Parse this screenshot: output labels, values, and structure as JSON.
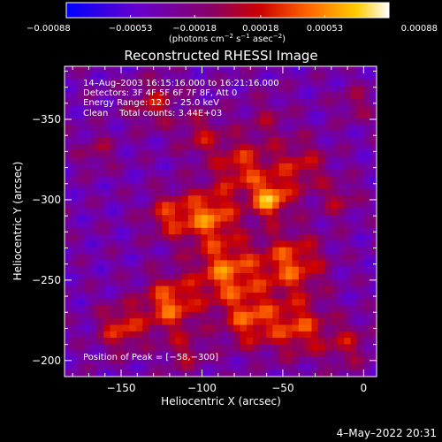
{
  "chart_data": {
    "type": "heatmap",
    "title": "Reconstructed RHESSI Image",
    "xlabel": "Heliocentric X (arcsec)",
    "ylabel": "Heliocentric Y (arcsec)",
    "xlim": [
      -185,
      8
    ],
    "ylim": [
      -383,
      -190
    ],
    "xticks": [
      -150,
      -100,
      -50,
      0
    ],
    "yticks": [
      -200,
      -250,
      -300,
      -350
    ],
    "xtick_labels": [
      "−150",
      "−100",
      "−50",
      "0"
    ],
    "ytick_labels": [
      "−200",
      "−250",
      "−300",
      "−350"
    ],
    "colorbar": {
      "range": [
        -0.00088,
        0.00088
      ],
      "ticks": [
        -0.00088,
        -0.00053,
        -0.00018,
        0.00018,
        0.00053,
        0.00088
      ],
      "tick_labels": [
        "−0.00088",
        "−0.00053",
        "−0.00018",
        "0.00018",
        "0.00053",
        "0.00088"
      ],
      "unit_parts": [
        "(photons cm",
        "−2",
        " s",
        "−1",
        " asec",
        "−2",
        ")"
      ]
    },
    "annotations": [
      "14–Aug–2003 16:15:16.000 to 16:21:16.000",
      "Detectors: 3F 4F 5F 6F 7F 8F, Att 0",
      "Energy Range: 12.0 – 25.0 keV",
      "Clean    Total counts: 3.44E+03"
    ],
    "peak_label": "Position of Peak = [−58,−300]",
    "sources": [
      {
        "x": -58,
        "y": -300,
        "amp": 0.00088,
        "sigma": 8
      },
      {
        "x": -95,
        "y": -290,
        "amp": 0.00075,
        "sigma": 12
      },
      {
        "x": -85,
        "y": -255,
        "amp": 0.00075,
        "sigma": 14
      },
      {
        "x": -45,
        "y": -260,
        "amp": 0.0007,
        "sigma": 14
      },
      {
        "x": -120,
        "y": -235,
        "amp": 0.00075,
        "sigma": 12
      },
      {
        "x": -150,
        "y": -220,
        "amp": 0.0006,
        "sigma": 10
      },
      {
        "x": -70,
        "y": -225,
        "amp": 0.00065,
        "sigma": 12
      },
      {
        "x": -40,
        "y": -220,
        "amp": 0.00062,
        "sigma": 12
      },
      {
        "x": -10,
        "y": -210,
        "amp": 0.0004,
        "sigma": 10
      },
      {
        "x": -120,
        "y": -290,
        "amp": 0.00055,
        "sigma": 10
      },
      {
        "x": -75,
        "y": -320,
        "amp": 0.0006,
        "sigma": 12
      },
      {
        "x": -40,
        "y": -320,
        "amp": 0.0005,
        "sigma": 12
      },
      {
        "x": -130,
        "y": -360,
        "amp": 0.00045,
        "sigma": 10
      },
      {
        "x": -100,
        "y": -340,
        "amp": 0.0004,
        "sigma": 10
      },
      {
        "x": -165,
        "y": -330,
        "amp": 0.0003,
        "sigma": 8
      },
      {
        "x": -60,
        "y": -350,
        "amp": 0.00025,
        "sigma": 10
      },
      {
        "x": -5,
        "y": -360,
        "amp": 0.0003,
        "sigma": 8
      },
      {
        "x": -15,
        "y": -300,
        "amp": 0.00035,
        "sigma": 8
      },
      {
        "x": -110,
        "y": -205,
        "amp": 0.00035,
        "sigma": 9
      }
    ],
    "background": -0.00035
  },
  "footer": {
    "timestamp": "4–May–2022 20:31"
  }
}
